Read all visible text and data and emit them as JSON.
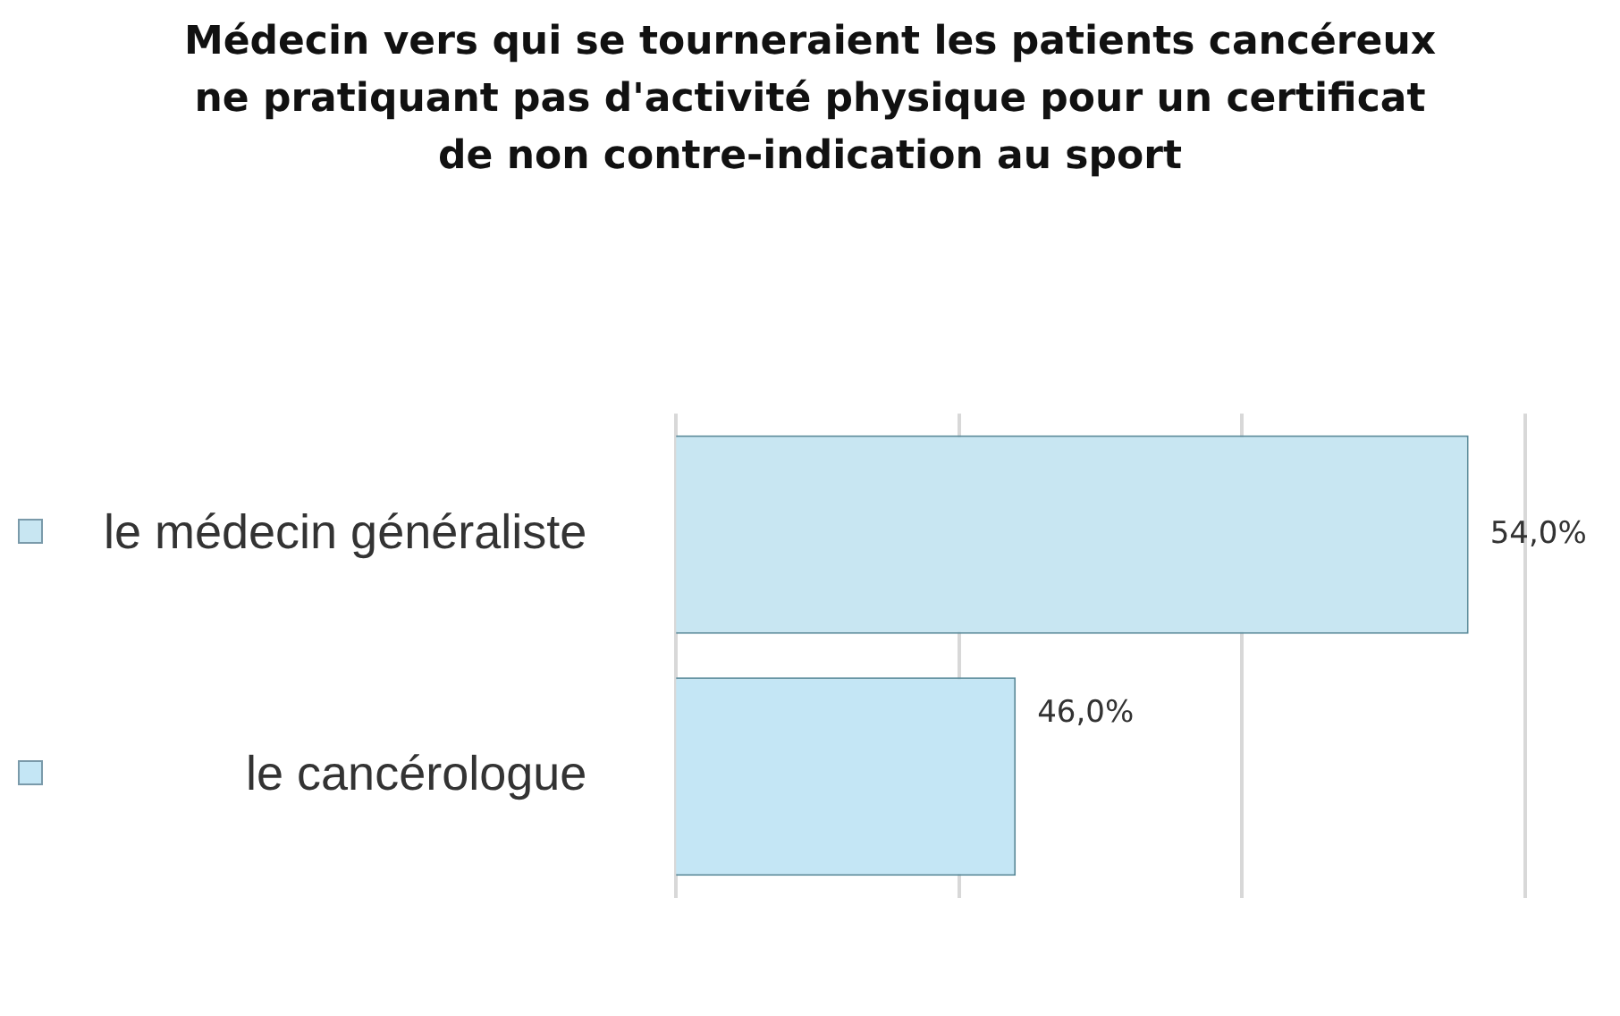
{
  "chart_data": {
    "type": "bar",
    "orientation": "horizontal",
    "title": "Médecin vers qui se tourneraient les patients cancéreux ne pratiquant pas d'activité physique pour un certificat de non contre-indication au sport",
    "categories": [
      "le médecin généraliste",
      "le cancérologue"
    ],
    "values": [
      54,
      46
    ],
    "colors": [
      "#c8e6f2",
      "#c4e6f5"
    ],
    "value_labels": [
      "54,0%",
      "46,0%"
    ],
    "xlim": [
      40,
      55
    ],
    "xticks": [
      {
        "value": 40,
        "label": null
      },
      {
        "value": 45,
        "label": null
      },
      {
        "value": 50,
        "label": null
      },
      {
        "value": 55,
        "label": null
      }
    ],
    "tick_labels": "y",
    "grid": "x"
  }
}
